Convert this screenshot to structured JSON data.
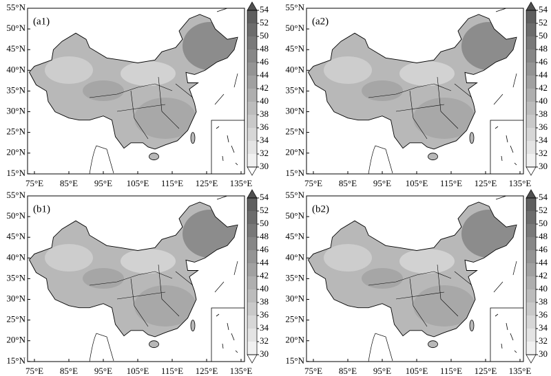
{
  "panels": [
    {
      "label": "(a1)"
    },
    {
      "label": "(a2)"
    },
    {
      "label": "(b1)"
    },
    {
      "label": "(b2)"
    }
  ],
  "lat_labels": [
    "55°N",
    "50°N",
    "45°N",
    "40°N",
    "35°N",
    "30°N",
    "25°N",
    "20°N",
    "15°N"
  ],
  "lon_labels": [
    "75°E",
    "85°E",
    "95°E",
    "105°E",
    "115°E",
    "125°E",
    "135°E"
  ],
  "colorbar_ticks": [
    54,
    52,
    50,
    48,
    46,
    44,
    42,
    40,
    38,
    36,
    34,
    32,
    30
  ]
}
